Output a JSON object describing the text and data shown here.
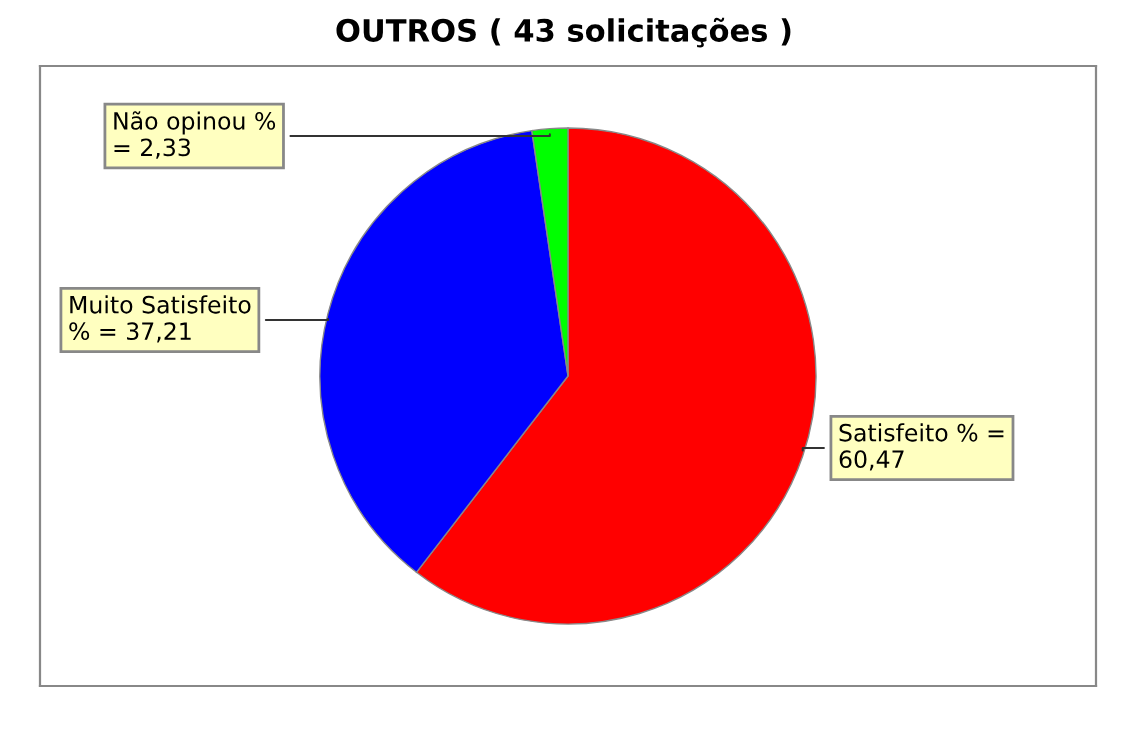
{
  "chart_data": {
    "type": "pie",
    "title": "OUTROS ( 43 solicitações )",
    "categories": [
      "Satisfeito",
      "Muito Satisfeito",
      "Não opinou"
    ],
    "values": [
      60.47,
      37.21,
      2.33
    ],
    "colors": [
      "#ff0000",
      "#0000ff",
      "#00ff00"
    ],
    "value_labels": [
      "% = 60,47",
      "% = 37,21",
      "% = 2,33"
    ],
    "legend": false
  }
}
